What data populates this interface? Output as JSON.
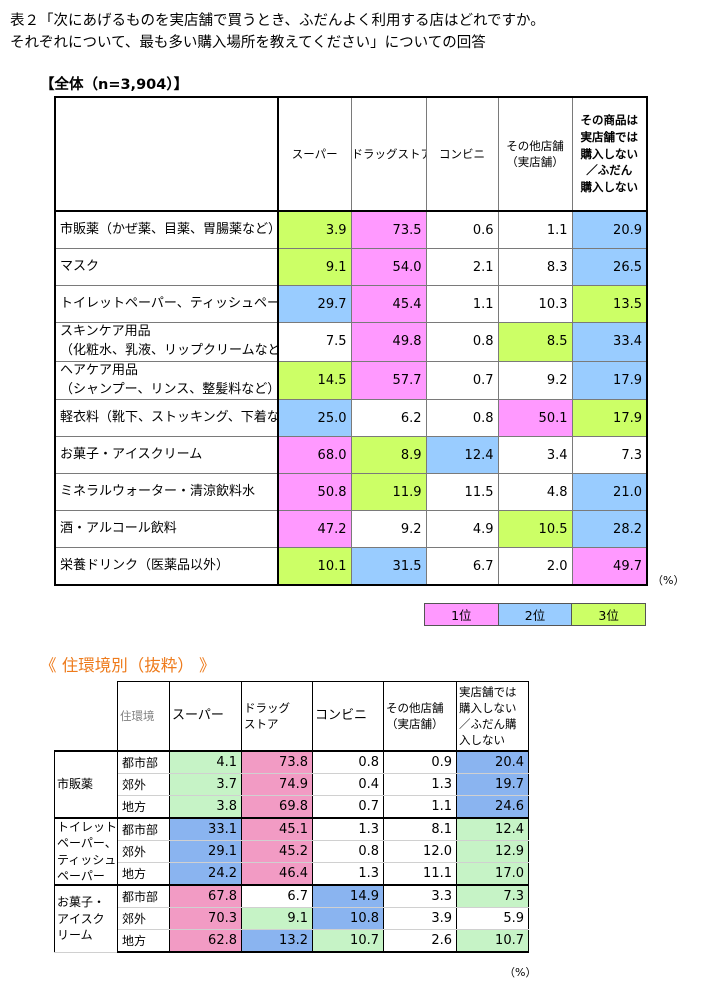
{
  "title_line1": "表２「次にあげるものを実店舗で買うとき、ふだんよく利用する店はどれですか。",
  "title_line2": "それぞれについて、最も多い購入場所を教えてください」についての回答",
  "total_label": "【全体（n=3,904）】",
  "colors": {
    "rank1": "#ff99ff",
    "rank2": "#99ccff",
    "rank3": "#ccff66",
    "title_accent": "#ee7b1c"
  },
  "main": {
    "headers": [
      [
        "スーパー"
      ],
      [
        "ドラッグストア"
      ],
      [
        "コンビニ"
      ],
      [
        "その他店舗",
        "（実店舗）"
      ],
      [
        "その商品は",
        "実店舗では",
        "購入しない",
        "／ふだん",
        "購入しない"
      ]
    ],
    "rows": [
      {
        "label": [
          "市販薬（かぜ薬、目薬、胃腸薬など）"
        ],
        "values": [
          "3.9",
          "73.5",
          "0.6",
          "1.1",
          "20.9"
        ],
        "ranks": [
          3,
          1,
          0,
          0,
          2
        ]
      },
      {
        "label": [
          "マスク"
        ],
        "values": [
          "9.1",
          "54.0",
          "2.1",
          "8.3",
          "26.5"
        ],
        "ranks": [
          3,
          1,
          0,
          0,
          2
        ]
      },
      {
        "label": [
          "トイレットペーパー、ティッシュペーパー"
        ],
        "values": [
          "29.7",
          "45.4",
          "1.1",
          "10.3",
          "13.5"
        ],
        "ranks": [
          2,
          1,
          0,
          0,
          3
        ]
      },
      {
        "label": [
          "スキンケア用品",
          "（化粧水、乳液、リップクリームなど）"
        ],
        "values": [
          "7.5",
          "49.8",
          "0.8",
          "8.5",
          "33.4"
        ],
        "ranks": [
          0,
          1,
          0,
          3,
          2
        ]
      },
      {
        "label": [
          "ヘアケア用品",
          "（シャンプー、リンス、整髪料など）"
        ],
        "values": [
          "14.5",
          "57.7",
          "0.7",
          "9.2",
          "17.9"
        ],
        "ranks": [
          3,
          1,
          0,
          0,
          2
        ]
      },
      {
        "label": [
          "軽衣料（靴下、ストッキング、下着など）"
        ],
        "values": [
          "25.0",
          "6.2",
          "0.8",
          "50.1",
          "17.9"
        ],
        "ranks": [
          2,
          0,
          0,
          1,
          3
        ]
      },
      {
        "label": [
          "お菓子・アイスクリーム"
        ],
        "values": [
          "68.0",
          "8.9",
          "12.4",
          "3.4",
          "7.3"
        ],
        "ranks": [
          1,
          3,
          2,
          0,
          0
        ]
      },
      {
        "label": [
          "ミネラルウォーター・清涼飲料水"
        ],
        "values": [
          "50.8",
          "11.9",
          "11.5",
          "4.8",
          "21.0"
        ],
        "ranks": [
          1,
          3,
          0,
          0,
          2
        ]
      },
      {
        "label": [
          "酒・アルコール飲料"
        ],
        "values": [
          "47.2",
          "9.2",
          "4.9",
          "10.5",
          "28.2"
        ],
        "ranks": [
          1,
          0,
          0,
          3,
          2
        ]
      },
      {
        "label": [
          "栄養ドリンク（医薬品以外）"
        ],
        "values": [
          "10.1",
          "31.5",
          "6.7",
          "2.0",
          "49.7"
        ],
        "ranks": [
          3,
          2,
          0,
          0,
          1
        ]
      }
    ],
    "unit": "（%）"
  },
  "legend": [
    "1位",
    "2位",
    "3位"
  ],
  "sub_title": "《 住環境別（抜粋） 》",
  "sub": {
    "corner": "住環境",
    "headers": [
      [
        "スーパー"
      ],
      [
        "ドラッグ",
        "ストア"
      ],
      [
        "コンビニ"
      ],
      [
        "その他店舗",
        "（実店舗）"
      ],
      [
        "実店舗では",
        "購入しない",
        "／ふだん購",
        "入しない"
      ]
    ],
    "groups": [
      {
        "label": [
          "市販薬"
        ],
        "rows": [
          {
            "area": "都市部",
            "values": [
              "4.1",
              "73.8",
              "0.8",
              "0.9",
              "20.4"
            ],
            "ranks": [
              3,
              1,
              0,
              0,
              2
            ]
          },
          {
            "area": "郊外",
            "values": [
              "3.7",
              "74.9",
              "0.4",
              "1.3",
              "19.7"
            ],
            "ranks": [
              3,
              1,
              0,
              0,
              2
            ]
          },
          {
            "area": "地方",
            "values": [
              "3.8",
              "69.8",
              "0.7",
              "1.1",
              "24.6"
            ],
            "ranks": [
              3,
              1,
              0,
              0,
              2
            ]
          }
        ]
      },
      {
        "label": [
          "トイレット",
          "ペーパー、",
          "ティッシュ",
          "ペーパー"
        ],
        "rows": [
          {
            "area": "都市部",
            "values": [
              "33.1",
              "45.1",
              "1.3",
              "8.1",
              "12.4"
            ],
            "ranks": [
              2,
              1,
              0,
              0,
              3
            ]
          },
          {
            "area": "郊外",
            "values": [
              "29.1",
              "45.2",
              "0.8",
              "12.0",
              "12.9"
            ],
            "ranks": [
              2,
              1,
              0,
              0,
              3
            ]
          },
          {
            "area": "地方",
            "values": [
              "24.2",
              "46.4",
              "1.3",
              "11.1",
              "17.0"
            ],
            "ranks": [
              2,
              1,
              0,
              0,
              3
            ]
          }
        ]
      },
      {
        "label": [
          "お菓子・",
          "アイスク",
          "リーム"
        ],
        "rows": [
          {
            "area": "都市部",
            "values": [
              "67.8",
              "6.7",
              "14.9",
              "3.3",
              "7.3"
            ],
            "ranks": [
              1,
              0,
              2,
              0,
              3
            ]
          },
          {
            "area": "郊外",
            "values": [
              "70.3",
              "9.1",
              "10.8",
              "3.9",
              "5.9"
            ],
            "ranks": [
              1,
              3,
              2,
              0,
              0
            ]
          },
          {
            "area": "地方",
            "values": [
              "62.8",
              "13.2",
              "10.7",
              "2.6",
              "10.7"
            ],
            "ranks": [
              1,
              2,
              3,
              0,
              3
            ]
          }
        ]
      }
    ],
    "unit": "（%）"
  }
}
